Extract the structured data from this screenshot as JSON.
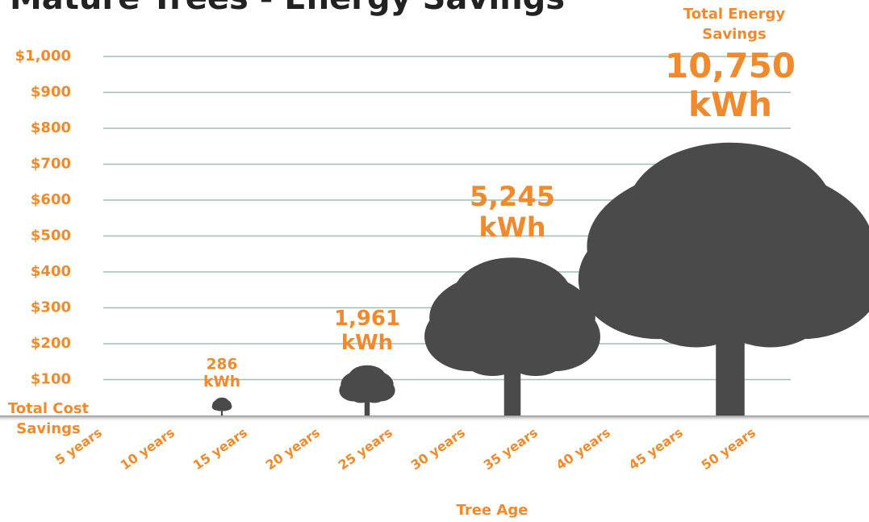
{
  "chart_data": {
    "type": "tree",
    "title": "Mature Trees - Energy Savings",
    "y_label": "Total Cost Savings",
    "x_label": "Tree Age",
    "annotation": "Total Energy Savings",
    "categories": [
      "5 years",
      "10 years",
      "15 years",
      "20 years",
      "25 years",
      "30 years",
      "35 years",
      "40 years",
      "45 years",
      "50 years"
    ],
    "values": [
      null,
      null,
      50,
      null,
      140,
      null,
      440,
      null,
      null,
      760
    ],
    "color": "#4a4a4a",
    "accent": "#f08a2c",
    "energy": {
      "values": [
        null,
        null,
        286,
        null,
        1961,
        null,
        5245,
        null,
        null,
        10750
      ],
      "value_labels": [
        null,
        null,
        "286",
        null,
        "1,961",
        null,
        "5,245",
        null,
        null,
        "10,750"
      ],
      "unit": "kWh"
    },
    "ylim": [
      0,
      1000
    ],
    "yticks": [
      {
        "value": 100,
        "label": "$100"
      },
      {
        "value": 200,
        "label": "$200"
      },
      {
        "value": 300,
        "label": "$300"
      },
      {
        "value": 400,
        "label": "$400"
      },
      {
        "value": 500,
        "label": "$500"
      },
      {
        "value": 600,
        "label": "$600"
      },
      {
        "value": 700,
        "label": "$700"
      },
      {
        "value": 800,
        "label": "$800"
      },
      {
        "value": 900,
        "label": "$900"
      },
      {
        "value": 1000,
        "label": "$1,000"
      }
    ],
    "grid": true
  }
}
